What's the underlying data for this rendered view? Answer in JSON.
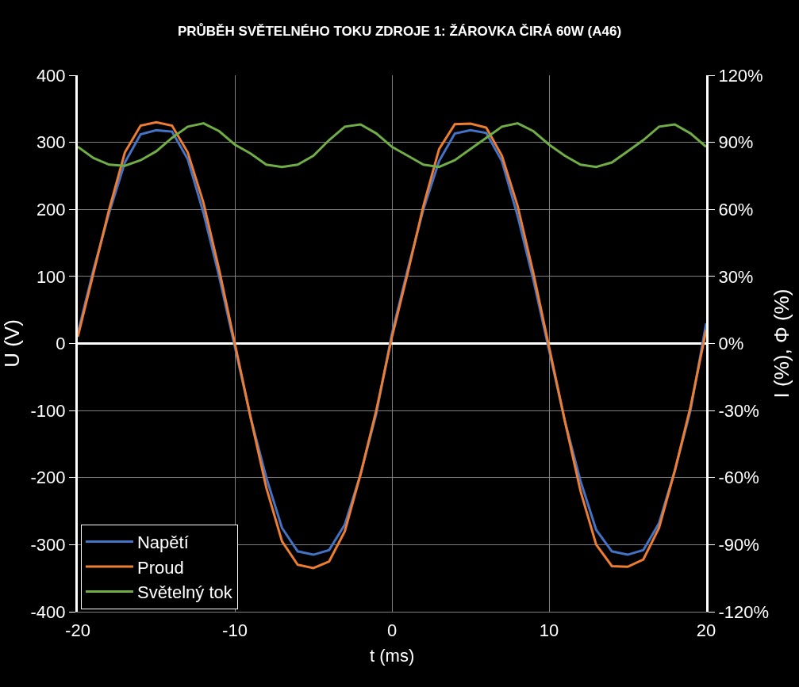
{
  "chart_data": {
    "type": "line",
    "title": "PRŮBĚH SVĚTELNÉHO TOKU ZDROJE 1: ŽÁROVKA ČIRÁ 60W (A46)",
    "xlabel": "t (ms)",
    "ylabel": "U (V)",
    "y2label": "I (%), Φ (%)",
    "x": [
      -20,
      -19,
      -18,
      -17,
      -16,
      -15,
      -14,
      -13,
      -12,
      -11,
      -10,
      -9,
      -8,
      -7,
      -6,
      -5,
      -4,
      -3,
      -2,
      -1,
      0,
      1,
      2,
      3,
      4,
      5,
      6,
      7,
      8,
      9,
      10,
      11,
      12,
      13,
      14,
      15,
      16,
      17,
      18,
      19,
      20
    ],
    "series": [
      {
        "name": "Napětí",
        "color": "#4472c4",
        "values": [
          15,
          110,
          195,
          270,
          312,
          318,
          316,
          275,
          195,
          100,
          -5,
          -110,
          -200,
          -275,
          -310,
          -315,
          -308,
          -270,
          -195,
          -105,
          15,
          110,
          200,
          272,
          313,
          318,
          314,
          272,
          190,
          95,
          -10,
          -115,
          -205,
          -278,
          -310,
          -315,
          -308,
          -268,
          -190,
          -100,
          30
        ]
      },
      {
        "name": "Proud",
        "color": "#ed7d31",
        "values": [
          10,
          105,
          200,
          285,
          325,
          330,
          325,
          285,
          210,
          110,
          0,
          -110,
          -215,
          -295,
          -330,
          -335,
          -325,
          -280,
          -195,
          -100,
          10,
          105,
          205,
          290,
          327,
          328,
          322,
          280,
          205,
          105,
          -5,
          -115,
          -220,
          -300,
          -332,
          -333,
          -322,
          -275,
          -190,
          -95,
          20
        ]
      },
      {
        "name": "Světelný tok",
        "color": "#70ad47",
        "axis": "y2",
        "values": [
          88,
          83,
          80,
          79.5,
          82,
          86,
          92,
          97,
          98.5,
          95,
          89,
          85,
          80,
          79,
          80,
          84,
          91,
          97,
          98,
          94,
          88,
          84,
          80,
          79,
          82,
          87,
          92,
          97,
          98.5,
          95,
          89,
          84,
          80,
          79,
          81,
          86,
          91,
          97,
          98,
          94,
          88
        ]
      }
    ],
    "xlim": [
      -20,
      20
    ],
    "xticks": [
      -20,
      -10,
      0,
      10,
      20
    ],
    "ylim": [
      -400,
      400
    ],
    "yticks": [
      -400,
      -300,
      -200,
      -100,
      0,
      100,
      200,
      300,
      400
    ],
    "y2lim": [
      -120,
      120
    ],
    "y2ticks": [
      {
        "value": -120,
        "label": "-120%"
      },
      {
        "value": -90,
        "label": "-90%"
      },
      {
        "value": -60,
        "label": "-60%"
      },
      {
        "value": -30,
        "label": "-30%"
      },
      {
        "value": 0,
        "label": "0%"
      },
      {
        "value": 30,
        "label": "30%"
      },
      {
        "value": 60,
        "label": "60%"
      },
      {
        "value": 90,
        "label": "90%"
      },
      {
        "value": 120,
        "label": "120%"
      }
    ],
    "grid": true,
    "legend": "bottom left",
    "marker": "none",
    "line_style": "solid"
  }
}
